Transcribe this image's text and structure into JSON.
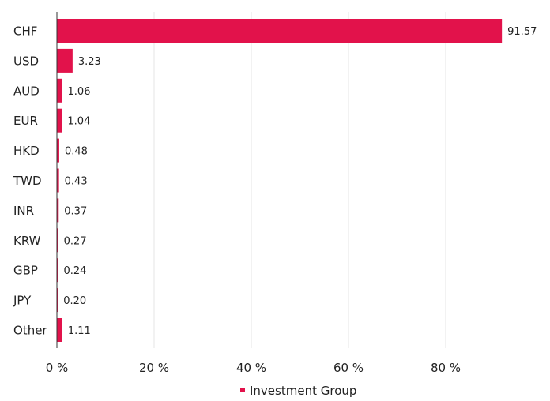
{
  "chart_data": {
    "type": "bar",
    "orientation": "horizontal",
    "title": "",
    "categories": [
      "CHF",
      "USD",
      "AUD",
      "EUR",
      "HKD",
      "TWD",
      "INR",
      "KRW",
      "GBP",
      "JPY",
      "Other"
    ],
    "series": [
      {
        "name": "Investment Group",
        "color": "#e2124b",
        "values": [
          91.57,
          3.23,
          1.06,
          1.04,
          0.48,
          0.43,
          0.37,
          0.27,
          0.24,
          0.2,
          1.11
        ],
        "labels": [
          "91.57",
          "3.23",
          "1.06",
          "1.04",
          "0.48",
          "0.43",
          "0.37",
          "0.27",
          "0.24",
          "0.20",
          "1.11"
        ]
      }
    ],
    "x_ticks": [
      0,
      20,
      40,
      60,
      80
    ],
    "x_tick_labels": [
      "0 %",
      "20 %",
      "40 %",
      "60 %",
      "80 %"
    ],
    "xlim": [
      0,
      100
    ],
    "grid": "vertical",
    "legend": "bottom-center"
  }
}
